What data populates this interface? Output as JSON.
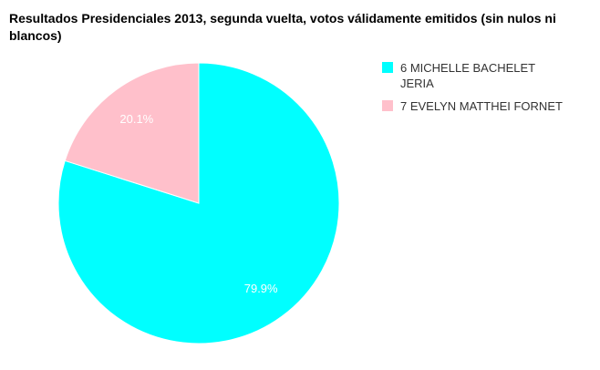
{
  "chart_data": {
    "type": "pie",
    "title": "Resultados Presidenciales 2013, segunda vuelta, votos válidamente emitidos (sin nulos ni blancos)",
    "categories": [
      "6 MICHELLE BACHELET JERIA",
      "7 EVELYN MATTHEI FORNET"
    ],
    "values": [
      79.9,
      20.1
    ],
    "labels": [
      "79.9%",
      "20.1%"
    ],
    "colors": [
      "#00FFFF",
      "#FFC0CB"
    ],
    "legend_position": "right"
  }
}
